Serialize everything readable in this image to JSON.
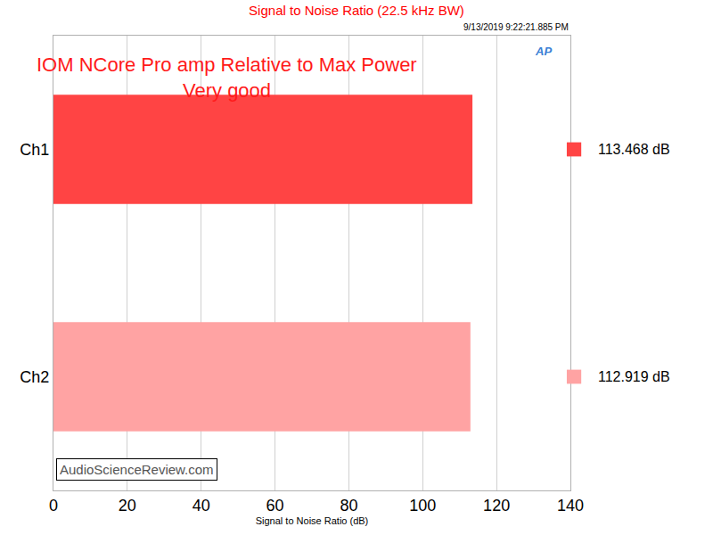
{
  "chart_data": {
    "type": "bar",
    "orientation": "horizontal",
    "title": "Signal to Noise Ratio (22.5 kHz BW)",
    "subtitle": "9/13/2019 9:22:21.885 PM",
    "annotations": [
      "IOM NCore Pro amp Relative to Max Power",
      "Very good",
      "AP",
      "AudioScienceReview.com"
    ],
    "categories": [
      "Ch1",
      "Ch2"
    ],
    "values": [
      113.468,
      112.919
    ],
    "value_labels": [
      "113.468 dB",
      "112.919 dB"
    ],
    "data_labels": true,
    "colors": [
      "#ff4444",
      "#ffa3a3"
    ],
    "x_label": "Signal to Noise Ratio (dB)",
    "xlim": [
      0,
      140
    ],
    "xticks": [
      0,
      20,
      40,
      60,
      80,
      100,
      120,
      140
    ],
    "grid": true
  }
}
